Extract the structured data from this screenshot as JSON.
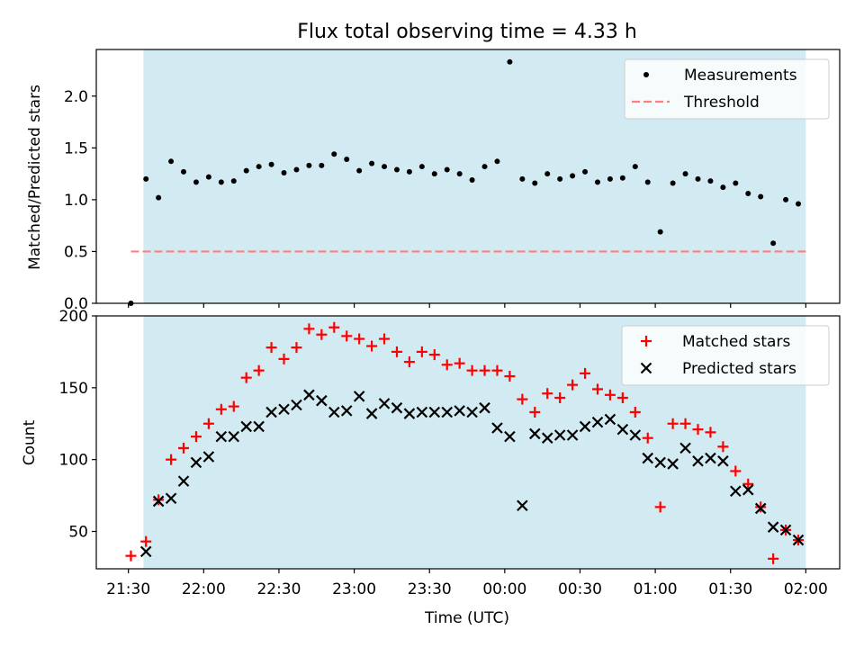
{
  "title": "Flux total observing time = 4.33 h",
  "colors": {
    "shade": "#add8e6",
    "measurement": "#000000",
    "threshold": "#ff7f7f",
    "matched": "#ff0000",
    "predicted": "#000000",
    "axis": "#000000"
  },
  "chart_data": [
    {
      "type": "scatter",
      "panel": "top",
      "ylabel": "Matched/Predicted stars",
      "ylim": [
        0.0,
        2.45
      ],
      "yticks": [
        "0.0",
        "0.5",
        "1.0",
        "1.5",
        "2.0"
      ],
      "shaded_interval": [
        "21:36",
        "02:00"
      ],
      "legend": {
        "placement": "top-right",
        "entries": [
          "Measurements",
          "Threshold"
        ]
      },
      "threshold": {
        "name": "Threshold",
        "value": 0.5,
        "x_range": [
          "21:31",
          "02:00"
        ]
      },
      "series": [
        {
          "name": "Measurements",
          "x": [
            "21:31",
            "21:37",
            "21:42",
            "21:47",
            "21:52",
            "21:57",
            "22:02",
            "22:07",
            "22:12",
            "22:17",
            "22:22",
            "22:27",
            "22:32",
            "22:37",
            "22:42",
            "22:47",
            "22:52",
            "22:57",
            "23:02",
            "23:07",
            "23:12",
            "23:17",
            "23:22",
            "23:27",
            "23:32",
            "23:37",
            "23:42",
            "23:47",
            "23:52",
            "23:57",
            "00:02",
            "00:07",
            "00:12",
            "00:17",
            "00:22",
            "00:27",
            "00:32",
            "00:37",
            "00:42",
            "00:47",
            "00:52",
            "00:57",
            "01:02",
            "01:07",
            "01:12",
            "01:17",
            "01:22",
            "01:27",
            "01:32",
            "01:37",
            "01:42",
            "01:47",
            "01:52",
            "01:57"
          ],
          "y": [
            0.0,
            1.2,
            1.02,
            1.37,
            1.27,
            1.17,
            1.22,
            1.17,
            1.18,
            1.28,
            1.32,
            1.34,
            1.26,
            1.29,
            1.33,
            1.33,
            1.44,
            1.39,
            1.28,
            1.35,
            1.32,
            1.29,
            1.27,
            1.32,
            1.25,
            1.29,
            1.25,
            1.19,
            1.32,
            1.37,
            2.33,
            1.2,
            1.16,
            1.25,
            1.2,
            1.23,
            1.27,
            1.17,
            1.2,
            1.21,
            1.32,
            1.17,
            0.69,
            1.16,
            1.25,
            1.2,
            1.18,
            1.12,
            1.16,
            1.06,
            1.03,
            0.58,
            1.0,
            0.96
          ]
        }
      ]
    },
    {
      "type": "scatter",
      "panel": "bottom",
      "xlabel": "Time (UTC)",
      "ylabel": "Count",
      "ylim": [
        24,
        200
      ],
      "yticks": [
        "50",
        "100",
        "150",
        "200"
      ],
      "xticks": [
        "21:30",
        "22:00",
        "22:30",
        "23:00",
        "23:30",
        "00:00",
        "00:30",
        "01:00",
        "01:30",
        "02:00"
      ],
      "shaded_interval": [
        "21:36",
        "02:00"
      ],
      "legend": {
        "placement": "top-right",
        "entries": [
          "Matched stars",
          "Predicted stars"
        ]
      },
      "series": [
        {
          "name": "Matched stars",
          "marker": "+",
          "x": [
            "21:31",
            "21:37",
            "21:42",
            "21:47",
            "21:52",
            "21:57",
            "22:02",
            "22:07",
            "22:12",
            "22:17",
            "22:22",
            "22:27",
            "22:32",
            "22:37",
            "22:42",
            "22:47",
            "22:52",
            "22:57",
            "23:02",
            "23:07",
            "23:12",
            "23:17",
            "23:22",
            "23:27",
            "23:32",
            "23:37",
            "23:42",
            "23:47",
            "23:52",
            "23:57",
            "00:02",
            "00:07",
            "00:12",
            "00:17",
            "00:22",
            "00:27",
            "00:32",
            "00:37",
            "00:42",
            "00:47",
            "00:52",
            "00:57",
            "01:02",
            "01:07",
            "01:12",
            "01:17",
            "01:22",
            "01:27",
            "01:32",
            "01:37",
            "01:42",
            "01:47",
            "01:52",
            "01:57"
          ],
          "y": [
            33,
            43,
            72,
            100,
            108,
            116,
            125,
            135,
            137,
            157,
            162,
            178,
            170,
            178,
            191,
            187,
            192,
            186,
            184,
            179,
            184,
            175,
            168,
            175,
            173,
            166,
            167,
            162,
            162,
            162,
            158,
            142,
            133,
            146,
            143,
            152,
            160,
            149,
            145,
            143,
            133,
            115,
            67,
            125,
            125,
            121,
            119,
            109,
            92,
            83,
            67,
            31,
            51,
            44
          ]
        },
        {
          "name": "Predicted stars",
          "marker": "x",
          "x": [
            "21:37",
            "21:42",
            "21:47",
            "21:52",
            "21:57",
            "22:02",
            "22:07",
            "22:12",
            "22:17",
            "22:22",
            "22:27",
            "22:32",
            "22:37",
            "22:42",
            "22:47",
            "22:52",
            "22:57",
            "23:02",
            "23:07",
            "23:12",
            "23:17",
            "23:22",
            "23:27",
            "23:32",
            "23:37",
            "23:42",
            "23:47",
            "23:52",
            "23:57",
            "00:02",
            "00:07",
            "00:12",
            "00:17",
            "00:22",
            "00:27",
            "00:32",
            "00:37",
            "00:42",
            "00:47",
            "00:52",
            "00:57",
            "01:02",
            "01:07",
            "01:12",
            "01:17",
            "01:22",
            "01:27",
            "01:32",
            "01:37",
            "01:42",
            "01:47",
            "01:52",
            "01:57"
          ],
          "y": [
            36,
            71,
            73,
            85,
            98,
            102,
            116,
            116,
            123,
            123,
            133,
            135,
            138,
            145,
            141,
            133,
            134,
            144,
            132,
            139,
            136,
            132,
            133,
            133,
            133,
            134,
            133,
            136,
            122,
            116,
            68,
            118,
            115,
            117,
            117,
            123,
            126,
            128,
            121,
            117,
            101,
            98,
            97,
            108,
            99,
            101,
            99,
            78,
            79,
            66,
            53,
            51,
            44
          ]
        }
      ]
    }
  ]
}
